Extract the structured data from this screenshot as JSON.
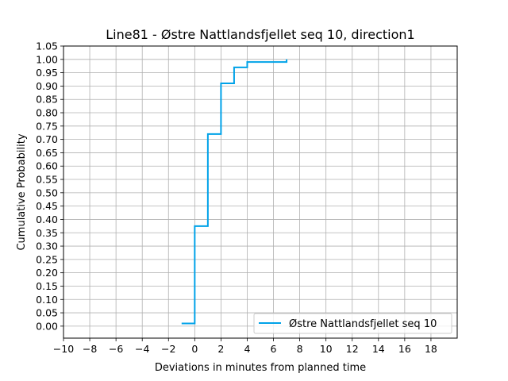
{
  "chart_data": {
    "type": "line",
    "title": "Line81 - Østre Nattlandsfjellet seq 10, direction1",
    "xlabel": "Deviations in minutes from planned time",
    "ylabel": "Cumulative Probability",
    "xlim": [
      -10,
      20
    ],
    "ylim": [
      -0.045,
      1.05
    ],
    "x_ticks": [
      -10,
      -8,
      -6,
      -4,
      -2,
      0,
      2,
      4,
      6,
      8,
      10,
      12,
      14,
      16,
      18
    ],
    "x_tick_labels": [
      "−10",
      "−8",
      "−6",
      "−4",
      "−2",
      "0",
      "2",
      "4",
      "6",
      "8",
      "10",
      "12",
      "14",
      "16",
      "18"
    ],
    "y_ticks": [
      0,
      0.05,
      0.1,
      0.15,
      0.2,
      0.25,
      0.3,
      0.35,
      0.4,
      0.45,
      0.5,
      0.55,
      0.6,
      0.65,
      0.7,
      0.75,
      0.8,
      0.85,
      0.9,
      0.95,
      1.0,
      1.05
    ],
    "y_tick_labels": [
      "0.00",
      "0.05",
      "0.10",
      "0.15",
      "0.20",
      "0.25",
      "0.30",
      "0.35",
      "0.40",
      "0.45",
      "0.50",
      "0.55",
      "0.60",
      "0.65",
      "0.70",
      "0.75",
      "0.80",
      "0.85",
      "0.90",
      "0.95",
      "1.00",
      "1.05"
    ],
    "grid": true,
    "legend_position": "bottom-right",
    "series": [
      {
        "name": "Østre Nattlandsfjellet seq 10",
        "color": "#00a2e8",
        "step": "post",
        "x": [
          -1,
          0,
          1,
          2,
          3,
          4,
          7
        ],
        "y": [
          0.01,
          0.375,
          0.72,
          0.91,
          0.97,
          0.99,
          1.0
        ]
      }
    ]
  }
}
